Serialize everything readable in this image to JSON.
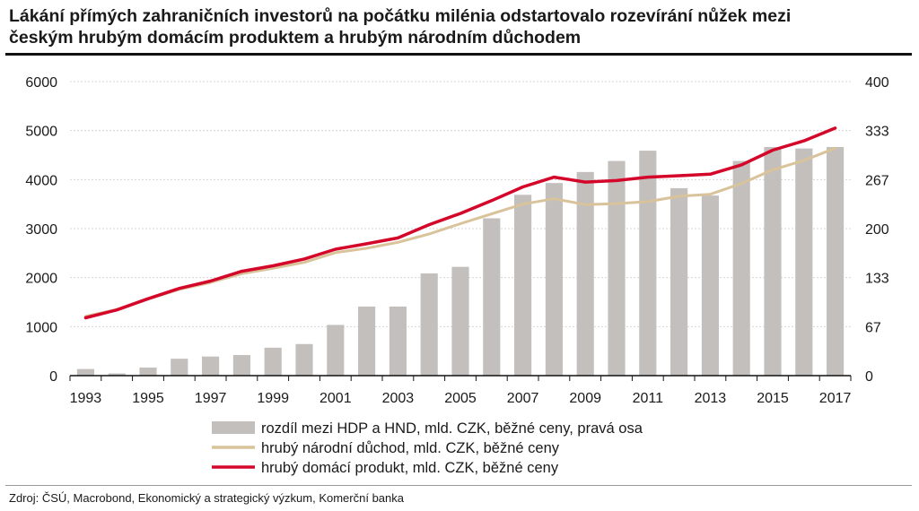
{
  "header": {
    "title_line1": "Lákání přímých zahraničních investorů na počátku milénia odstartovalo rozevírání nůžek mezi",
    "title_line2": "českým hrubým domácím produktem a hrubým národním důchodem"
  },
  "footer": {
    "source": "Zdroj: ČSÚ, Macrobond, Ekonomický a strategický výzkum, Komerční banka"
  },
  "chart_data": {
    "type": "bar+line",
    "x": [
      1993,
      1994,
      1995,
      1996,
      1997,
      1998,
      1999,
      2000,
      2001,
      2002,
      2003,
      2004,
      2005,
      2006,
      2007,
      2008,
      2009,
      2010,
      2011,
      2012,
      2013,
      2014,
      2015,
      2016,
      2017
    ],
    "x_tick_labels": [
      "1993",
      "1995",
      "1997",
      "1999",
      "2001",
      "2003",
      "2005",
      "2007",
      "2009",
      "2011",
      "2013",
      "2015",
      "2017"
    ],
    "left_axis": {
      "ylim": [
        0,
        6000
      ],
      "ticks": [
        "0",
        "1000",
        "2000",
        "3000",
        "4000",
        "5000",
        "6000"
      ]
    },
    "right_axis": {
      "ylim": [
        0,
        400
      ],
      "ticks": [
        "0",
        "67",
        "133",
        "200",
        "267",
        "333",
        "400"
      ]
    },
    "series": [
      {
        "name": "rozdíl mezi HDP a HND, mld. CZK, běžné ceny, pravá osa",
        "type": "bar",
        "axis": "right",
        "color": "#c3bfbd",
        "values": [
          9,
          3,
          11,
          23,
          26,
          28,
          38,
          43,
          69,
          94,
          94,
          139,
          148,
          214,
          246,
          262,
          277,
          292,
          306,
          255,
          245,
          292,
          311,
          309,
          311
        ]
      },
      {
        "name": "hrubý národní důchod, mld. CZK, běžné ceny",
        "type": "line",
        "axis": "left",
        "color": "#d8c39a",
        "values": [
          1210,
          1350,
          1560,
          1760,
          1900,
          2080,
          2190,
          2310,
          2510,
          2600,
          2720,
          2890,
          3100,
          3300,
          3500,
          3610,
          3490,
          3510,
          3550,
          3660,
          3700,
          3920,
          4200,
          4390,
          4640
        ]
      },
      {
        "name": "hrubý domácí produkt, mld. CZK, běžné ceny",
        "type": "line",
        "axis": "left",
        "color": "#d4062a",
        "values": [
          1180,
          1340,
          1570,
          1780,
          1930,
          2130,
          2240,
          2380,
          2580,
          2690,
          2810,
          3080,
          3310,
          3570,
          3850,
          4050,
          3950,
          3980,
          4050,
          4080,
          4110,
          4300,
          4600,
          4790,
          5050
        ]
      }
    ],
    "grid": true,
    "legend_position": "bottom"
  }
}
